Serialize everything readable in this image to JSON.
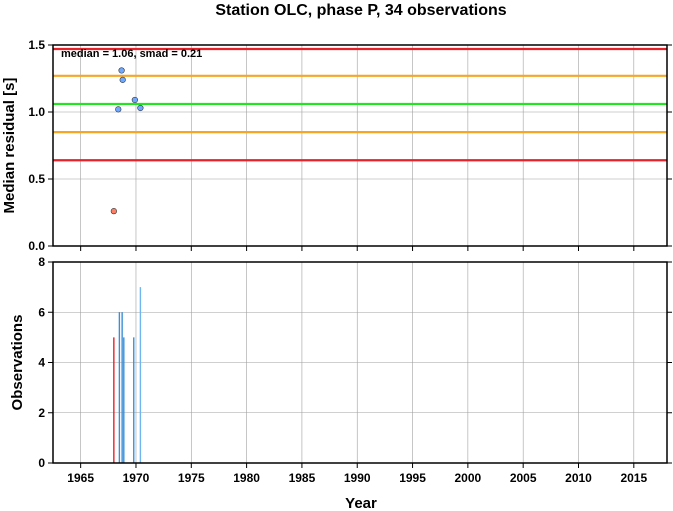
{
  "chart_data": [
    {
      "type": "scatter",
      "title": "Station OLC, phase P, 34 observations",
      "annotation": "median = 1.06, smad = 0.21",
      "ylabel": "Median residual [s]",
      "xlim": [
        1962.5,
        2018
      ],
      "ylim": [
        0,
        1.5
      ],
      "yticks": [
        "0.0",
        "0.5",
        "1.0",
        "1.5"
      ],
      "grid": true,
      "reference_lines": [
        {
          "y": 1.47,
          "color": "#e8202a"
        },
        {
          "y": 1.27,
          "color": "#f5a623"
        },
        {
          "y": 1.06,
          "color": "#1fe61f"
        },
        {
          "y": 0.85,
          "color": "#f5a623"
        },
        {
          "y": 0.64,
          "color": "#e8202a"
        }
      ],
      "series": [
        {
          "color": "#ff7f66",
          "points": [
            {
              "x": 1968.0,
              "y": 0.26
            }
          ]
        },
        {
          "color": "#6fa8ff",
          "points": [
            {
              "x": 1968.4,
              "y": 1.02
            },
            {
              "x": 1968.7,
              "y": 1.31
            },
            {
              "x": 1968.8,
              "y": 1.24
            },
            {
              "x": 1969.9,
              "y": 1.09
            },
            {
              "x": 1970.4,
              "y": 1.03
            }
          ]
        }
      ]
    },
    {
      "type": "bar",
      "xlabel": "Year",
      "ylabel": "Observations",
      "xlim": [
        1962.5,
        2018
      ],
      "ylim": [
        0,
        8
      ],
      "xticks": [
        1965,
        1970,
        1975,
        1980,
        1985,
        1990,
        1995,
        2000,
        2005,
        2010,
        2015
      ],
      "yticks": [
        "0",
        "2",
        "4",
        "6",
        "8"
      ],
      "grid": true,
      "bars": [
        {
          "x": 1968.0,
          "value": 5,
          "color": "#e8202a"
        },
        {
          "x": 1968.5,
          "value": 6,
          "color": "#3a8fd8"
        },
        {
          "x": 1968.75,
          "value": 6,
          "color": "#3a8fd8"
        },
        {
          "x": 1968.9,
          "value": 5,
          "color": "#3a8fd8"
        },
        {
          "x": 1969.8,
          "value": 5,
          "color": "#3a8fd8"
        },
        {
          "x": 1970.4,
          "value": 7,
          "color": "#6fb6f0"
        }
      ]
    }
  ]
}
